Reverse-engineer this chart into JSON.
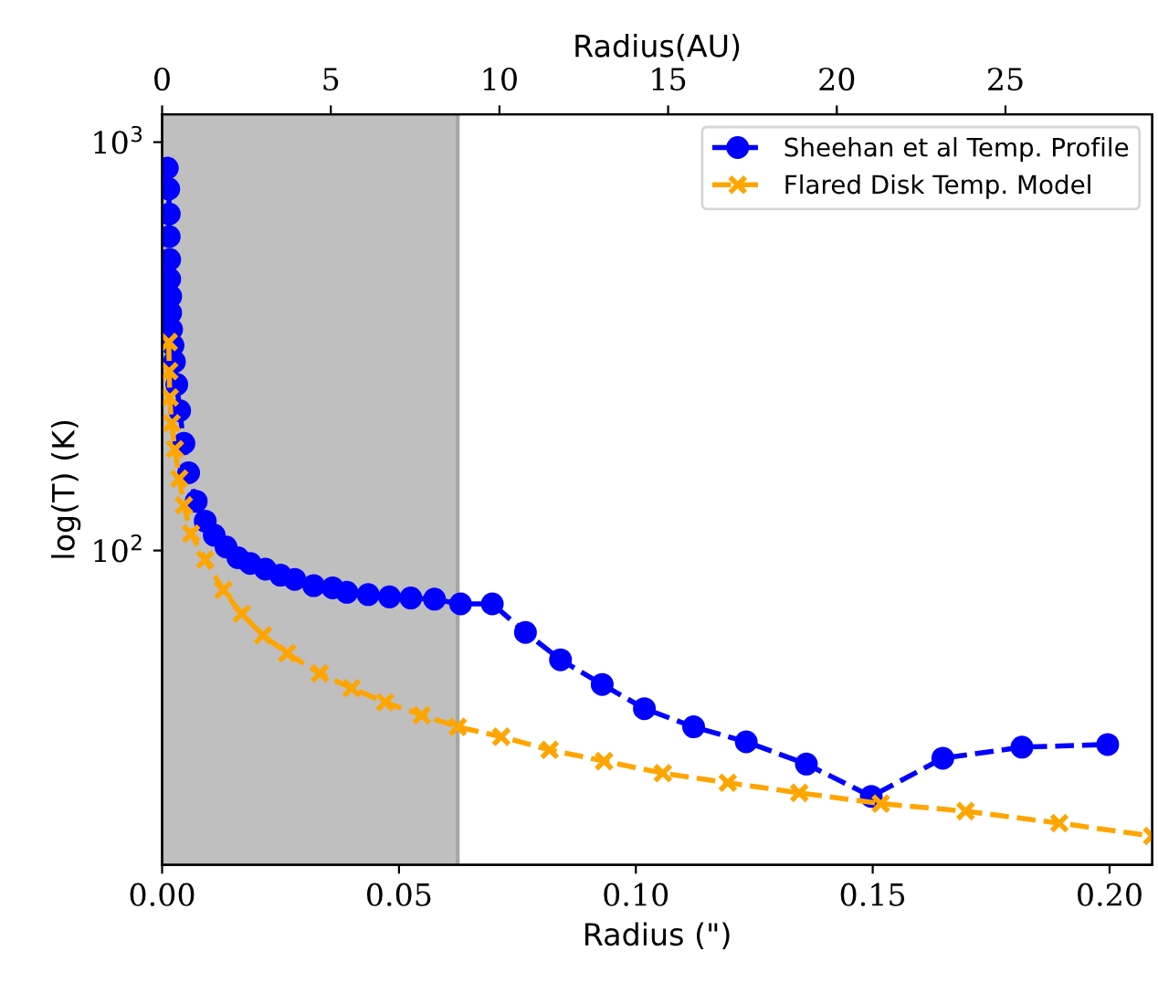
{
  "chart_data": {
    "type": "line",
    "xlabel": "Radius (\")",
    "ylabel": "log(T) (K)",
    "x2label": "Radius(AU)",
    "log": "y",
    "xlim": [
      0,
      0.209
    ],
    "xticks": [
      {
        "value": 0,
        "label": "0.00"
      },
      {
        "value": 0.05,
        "label": "0.05"
      },
      {
        "value": 0.1,
        "label": "0.10"
      },
      {
        "value": 0.15,
        "label": "0.15"
      },
      {
        "value": 0.2,
        "label": "0.20"
      }
    ],
    "x2lim": [
      0,
      29.35
    ],
    "x2ticks": [
      0,
      5,
      10,
      15,
      20,
      25
    ],
    "ylim": [
      17,
      1170
    ],
    "yticks": [
      {
        "value": 100,
        "label": "10$^{2}$"
      },
      {
        "value": 1000,
        "label": "10$^{3}$"
      }
    ],
    "legend": "top right",
    "grid": false,
    "bands": [
      {
        "axis": "x",
        "from": 0,
        "to": 0.0624,
        "color": "#bfbfbf"
      }
    ],
    "ref_lines": [
      {
        "axis": "x",
        "value": 0.0624,
        "color": "#a6a6a6",
        "line_style": "solid"
      }
    ],
    "series": [
      {
        "name": "Sheehan et al Temp. Profile",
        "color": "#0000ff",
        "marker": "circle",
        "line_style": "dashed",
        "x": [
          0.0011,
          0.0014,
          0.0015,
          0.0015,
          0.0016,
          0.0016,
          0.0018,
          0.0018,
          0.002,
          0.0023,
          0.0026,
          0.0031,
          0.0037,
          0.0046,
          0.0056,
          0.0072,
          0.0091,
          0.011,
          0.0135,
          0.016,
          0.0186,
          0.0218,
          0.025,
          0.028,
          0.032,
          0.036,
          0.039,
          0.0435,
          0.048,
          0.0525,
          0.0575,
          0.063,
          0.0697,
          0.0767,
          0.0841,
          0.0929,
          0.1018,
          0.1122,
          0.1233,
          0.136,
          0.1497,
          0.1648,
          0.1815,
          0.1996
        ],
        "values": [
          864,
          768,
          667,
          587,
          516,
          462,
          419,
          382,
          348,
          318,
          290,
          255,
          220,
          183,
          155,
          132,
          118,
          109,
          102,
          96,
          93,
          90,
          87,
          85,
          82,
          81,
          79,
          78,
          77,
          76.5,
          76,
          74,
          74,
          63,
          54,
          47,
          41,
          37,
          34,
          30,
          25,
          31,
          33,
          33.5
        ]
      },
      {
        "name": "Flared Disk Temp. Model",
        "color": "#ffa500",
        "marker": "cross",
        "line_style": "dashed",
        "x": [
          0.0014,
          0.0015,
          0.0016,
          0.002,
          0.0027,
          0.0036,
          0.0046,
          0.0061,
          0.0091,
          0.0129,
          0.0168,
          0.0213,
          0.0264,
          0.0333,
          0.04,
          0.0471,
          0.0548,
          0.0624,
          0.0716,
          0.0818,
          0.0933,
          0.1057,
          0.1194,
          0.1345,
          0.1517,
          0.1696,
          0.1894,
          0.209
        ],
        "values": [
          324,
          275,
          237,
          205,
          177,
          150,
          129,
          110,
          95,
          80,
          70,
          62,
          56,
          50,
          46,
          42.5,
          39.5,
          37,
          35,
          32.5,
          30.5,
          28.5,
          27,
          25.5,
          24,
          23,
          21.5,
          20
        ]
      }
    ]
  }
}
